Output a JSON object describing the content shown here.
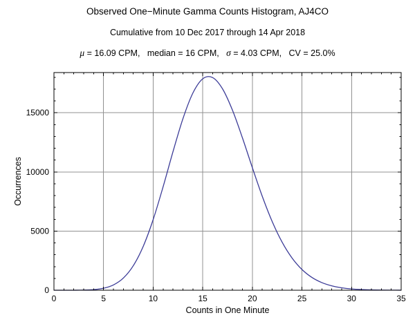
{
  "chart_data": {
    "type": "line",
    "title": "Observed One−Minute Gamma Counts Histogram, AJ4CO",
    "subtitle": "Cumulative from 10 Dec 2017 through 14 Apr 2018",
    "stats_annotation": [
      {
        "text": "μ",
        "style": "italic-greek"
      },
      {
        "text": " = 16.09 CPM,   median = 16 CPM,   ",
        "style": "plain"
      },
      {
        "text": "σ",
        "style": "italic-greek"
      },
      {
        "text": " = 4.03 CPM,   CV = 25.0%",
        "style": "plain"
      }
    ],
    "xlabel": "Counts in One Minute",
    "ylabel": "Occurrences",
    "x": [
      0,
      1,
      2,
      3,
      4,
      5,
      6,
      7,
      8,
      9,
      10,
      11,
      12,
      13,
      14,
      15,
      16,
      17,
      18,
      19,
      20,
      21,
      22,
      23,
      24,
      25,
      26,
      27,
      28,
      29,
      30,
      31,
      32,
      33,
      34,
      35
    ],
    "values": [
      0,
      0,
      2,
      13,
      52,
      167,
      449,
      1032,
      2076,
      3712,
      5973,
      8736,
      11714,
      14499,
      16663,
      17876,
      17975,
      17014,
      15208,
      12879,
      10360,
      7938,
      5806,
      4062,
      2723,
      1753,
      1085,
      646,
      372,
      206,
      110,
      57,
      29,
      14,
      7,
      3
    ],
    "xlim": [
      0,
      35
    ],
    "ylim": [
      0,
      18400
    ],
    "xticks": {
      "major": [
        0,
        5,
        10,
        15,
        20,
        25,
        30,
        35
      ],
      "minor_step": 1
    },
    "yticks": {
      "major": [
        0,
        5000,
        10000,
        15000
      ],
      "minor_step": 1000
    },
    "gridlines": {
      "x": [
        5,
        10,
        15,
        20,
        25,
        30
      ],
      "y": [
        5000,
        10000,
        15000
      ]
    },
    "grid": true,
    "legend_position": "none",
    "colors": {
      "line": "#3b3b97",
      "grid": "#909090",
      "frame": "#000000",
      "background": "#ffffff"
    }
  }
}
